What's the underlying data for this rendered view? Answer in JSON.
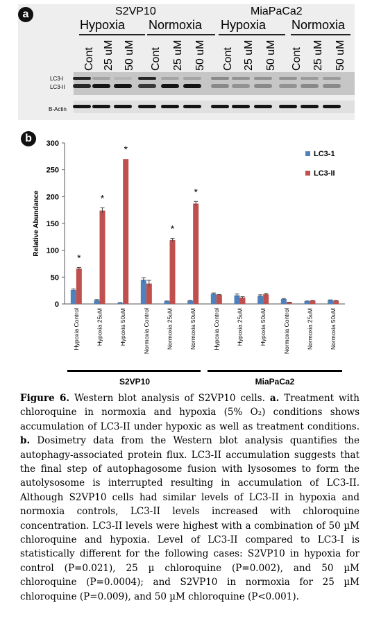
{
  "panel_a": {
    "label": "a",
    "cell_lines": [
      "S2VP10",
      "MiaPaCa2"
    ],
    "conditions": [
      "Hypoxia",
      "Normoxia",
      "Hypoxia",
      "Normoxia"
    ],
    "lanes": [
      "Cont",
      "25 uM",
      "50 uM",
      "Cont",
      "25 uM",
      "50 uM",
      "Cont",
      "25 uM",
      "50 uM",
      "Cont",
      "25 uM",
      "50 uM"
    ],
    "band_labels": [
      "LC3-I",
      "LC3-II",
      "B-Actin"
    ]
  },
  "panel_b": {
    "label": "b",
    "group_labels": [
      "S2VP10",
      "MiaPaCa2"
    ]
  },
  "chart_data": {
    "type": "bar",
    "categories": [
      "Hypoxia Control",
      "Hypoxia 25uM",
      "Hypoxia 50uM",
      "Normoxia Control",
      "Normoxia 25uM",
      "Normoxia 50uM",
      "Hypoxia Control",
      "Hypoxia 25uM",
      "Hypoxia 50uM",
      "Normoxia Control",
      "Normoxia 25uM",
      "Normoxia 50uM"
    ],
    "series": [
      {
        "name": "LC3-1",
        "values": [
          26,
          7,
          2,
          45,
          5,
          6,
          19,
          16,
          15,
          9,
          5,
          7
        ],
        "errors": [
          2,
          1,
          0.5,
          4,
          0.5,
          0.5,
          1.5,
          2.5,
          2,
          1,
          0.5,
          0.5
        ],
        "color": "#4f81bd"
      },
      {
        "name": "LC3-II",
        "values": [
          66,
          174,
          270,
          38,
          119,
          187,
          17,
          12,
          18,
          3,
          6,
          6
        ],
        "errors": [
          2,
          5,
          0,
          6,
          3,
          4,
          0.5,
          1.5,
          2,
          0.3,
          0.5,
          0.5
        ],
        "color": "#c0504d"
      }
    ],
    "significance": [
      "*",
      "*",
      "*",
      "",
      "*",
      "*",
      "",
      "",
      "",
      "",
      "",
      ""
    ],
    "xlabel": "",
    "ylabel": "Relative Abundance",
    "ylim": [
      0,
      300
    ],
    "yticks": [
      0,
      50,
      100,
      150,
      200,
      250,
      300
    ],
    "legend": "top-right",
    "grid": false
  },
  "caption": {
    "heading": "Figure 6.",
    "text": "Western blot analysis of S2VP10 cells.",
    "a_label": "a.",
    "a_text": "Treatment with chloroquine in normoxia and hypoxia (5% O₂) conditions shows accumulation of LC3-II under hypoxic as well as treatment conditions.",
    "b_label": "b.",
    "b_text": "Dosimetry data from the Western blot analysis quantifies the autophagy-associated protein flux. LC3-II accumulation suggests that the final step of autophagosome fusion with lysosomes to form the autolysosome is interrupted resulting in accumulation of LC3-II. Although S2VP10 cells had similar levels of LC3-II in hypoxia and normoxia controls, LC3-II levels increased with chloroquine concentration. LC3-II levels were highest with a combination of 50 µM chloroquine and hypoxia. Level of LC3-II compared to LC3-I is statistically different for the following cases: S2VP10 in hypoxia for control (P=0.021), 25 µ chloroquine (P=0.002), and 50 µM chloroquine (P=0.0004); and S2VP10 in normoxia for 25 µM chloroquine (P=0.009), and 50 µM chloroquine (P<0.001)."
  }
}
